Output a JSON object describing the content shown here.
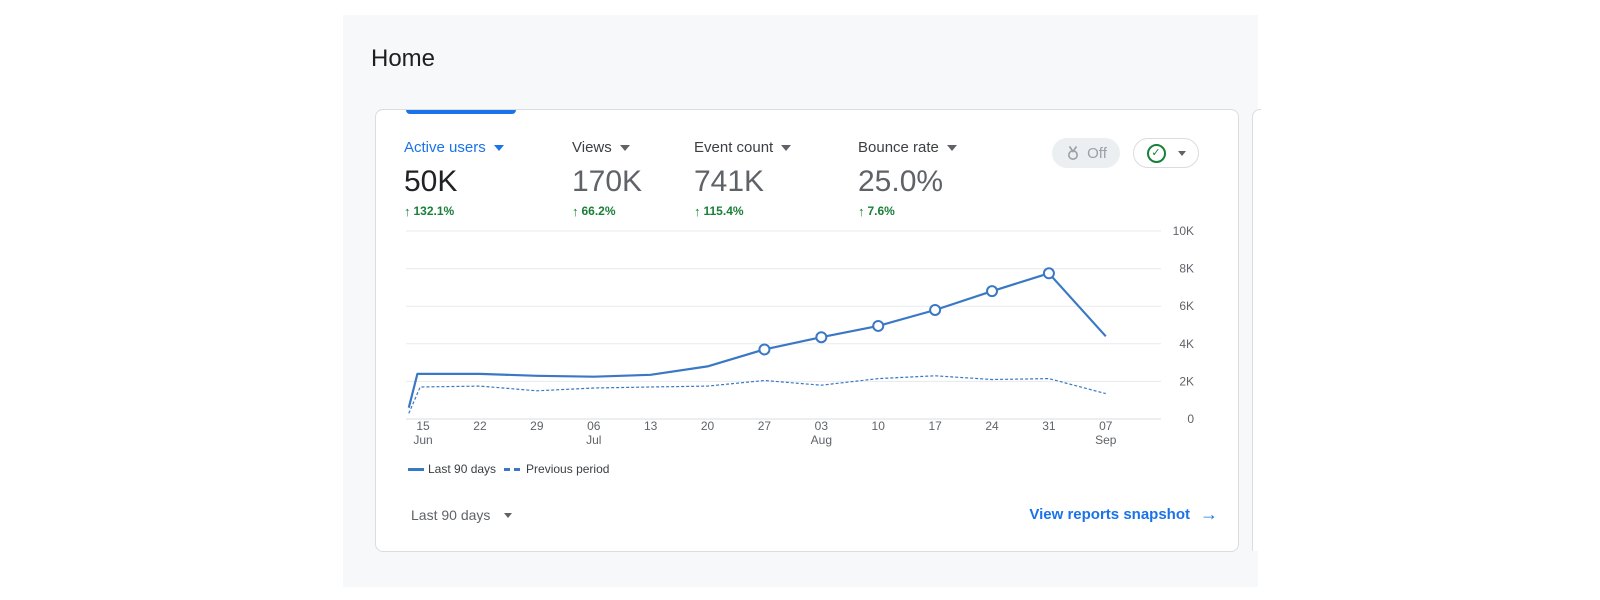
{
  "page": {
    "title": "Home"
  },
  "metrics": [
    {
      "label": "Active users",
      "value": "50K",
      "change": "132.1%"
    },
    {
      "label": "Views",
      "value": "170K",
      "change": "66.2%"
    },
    {
      "label": "Event count",
      "value": "741K",
      "change": "115.4%"
    },
    {
      "label": "Bounce rate",
      "value": "25.0%",
      "change": "7.6%"
    }
  ],
  "controls": {
    "toggle_label": "Off"
  },
  "chart_data": {
    "type": "line",
    "ylim": [
      0,
      10000
    ],
    "y_ticks": [
      {
        "value": 0,
        "label": "0"
      },
      {
        "value": 2000,
        "label": "2K"
      },
      {
        "value": 4000,
        "label": "4K"
      },
      {
        "value": 6000,
        "label": "6K"
      },
      {
        "value": 8000,
        "label": "8K"
      },
      {
        "value": 10000,
        "label": "10K"
      }
    ],
    "x_ticks": [
      {
        "label": "15",
        "sublabel": "Jun"
      },
      {
        "label": "22",
        "sublabel": ""
      },
      {
        "label": "29",
        "sublabel": ""
      },
      {
        "label": "06",
        "sublabel": "Jul"
      },
      {
        "label": "13",
        "sublabel": ""
      },
      {
        "label": "20",
        "sublabel": ""
      },
      {
        "label": "27",
        "sublabel": ""
      },
      {
        "label": "03",
        "sublabel": "Aug"
      },
      {
        "label": "10",
        "sublabel": ""
      },
      {
        "label": "17",
        "sublabel": ""
      },
      {
        "label": "24",
        "sublabel": ""
      },
      {
        "label": "31",
        "sublabel": ""
      },
      {
        "label": "07",
        "sublabel": "Sep"
      }
    ],
    "x_domain": [
      -0.3,
      12.97
    ],
    "series": [
      {
        "name": "Last 90 days",
        "style": "solid",
        "color": "#3a78c5",
        "points": [
          {
            "x": -0.25,
            "y": 600
          },
          {
            "x": -0.1,
            "y": 2400
          },
          {
            "x": 1,
            "y": 2400
          },
          {
            "x": 2,
            "y": 2300
          },
          {
            "x": 3,
            "y": 2250
          },
          {
            "x": 4,
            "y": 2350
          },
          {
            "x": 5,
            "y": 2800
          },
          {
            "x": 6,
            "y": 3700,
            "marker": true
          },
          {
            "x": 7,
            "y": 4350,
            "marker": true
          },
          {
            "x": 8,
            "y": 4950,
            "marker": true
          },
          {
            "x": 9,
            "y": 5800,
            "marker": true
          },
          {
            "x": 10,
            "y": 6800,
            "marker": true
          },
          {
            "x": 11,
            "y": 7750,
            "marker": true
          },
          {
            "x": 12,
            "y": 4400
          }
        ]
      },
      {
        "name": "Previous period",
        "style": "dashed",
        "color": "#3a78c5",
        "points": [
          {
            "x": -0.25,
            "y": 300
          },
          {
            "x": -0.05,
            "y": 1700
          },
          {
            "x": 1,
            "y": 1750
          },
          {
            "x": 2,
            "y": 1500
          },
          {
            "x": 3,
            "y": 1650
          },
          {
            "x": 4,
            "y": 1700
          },
          {
            "x": 5,
            "y": 1750
          },
          {
            "x": 6,
            "y": 2050
          },
          {
            "x": 7,
            "y": 1800
          },
          {
            "x": 8,
            "y": 2150
          },
          {
            "x": 9,
            "y": 2300
          },
          {
            "x": 10,
            "y": 2100
          },
          {
            "x": 11,
            "y": 2150
          },
          {
            "x": 12,
            "y": 1350
          }
        ]
      }
    ]
  },
  "legend": {
    "current": "Last 90 days",
    "previous": "Previous period"
  },
  "footer": {
    "date_range": "Last 90 days",
    "view_link": "View reports snapshot"
  },
  "colors": {
    "accent": "#1a73e8",
    "line": "#3a78c5",
    "positive": "#188038"
  }
}
